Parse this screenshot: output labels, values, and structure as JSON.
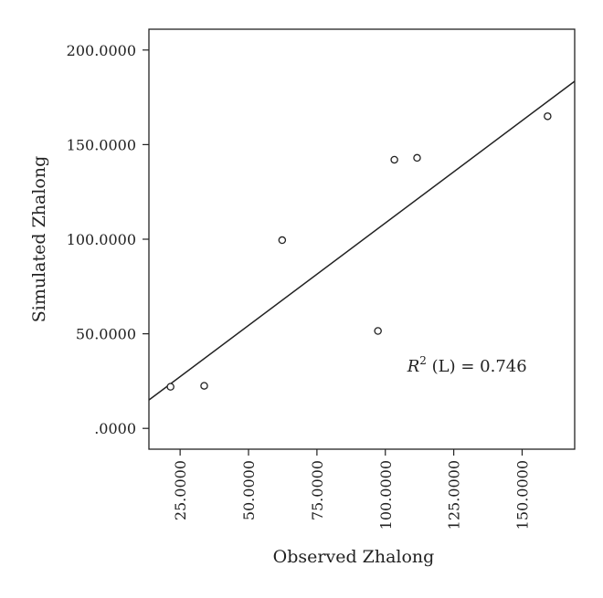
{
  "chart_data": {
    "type": "scatter",
    "title": "",
    "xlabel": "Observed Zhalong",
    "ylabel": "Simulated Zhalong",
    "xlim": [
      13.6,
      169.2
    ],
    "ylim": [
      -11.0,
      211.0
    ],
    "x_ticks": [
      25,
      50,
      75,
      100,
      125,
      150
    ],
    "x_tick_labels": [
      "25.0000",
      "50.0000",
      "75.0000",
      "100.0000",
      "125.0000",
      "150.0000"
    ],
    "y_ticks": [
      0,
      50,
      100,
      150,
      200
    ],
    "y_tick_labels": [
      ".0000",
      "50.0000",
      "100.0000",
      "150.0000",
      "200.0000"
    ],
    "grid": false,
    "points": [
      {
        "x": 21.5,
        "y": 22.0
      },
      {
        "x": 33.8,
        "y": 22.5
      },
      {
        "x": 62.3,
        "y": 99.5
      },
      {
        "x": 97.3,
        "y": 51.5
      },
      {
        "x": 103.3,
        "y": 142.0
      },
      {
        "x": 111.6,
        "y": 143.0
      },
      {
        "x": 159.3,
        "y": 165.0
      }
    ],
    "fit_line": {
      "x": [
        13.6,
        169.2
      ],
      "y": [
        15.0,
        183.5
      ]
    },
    "annotation": {
      "prefix": "R",
      "superscript": "2",
      "text": " (L) = 0.746",
      "x": 108,
      "y": 30
    }
  }
}
